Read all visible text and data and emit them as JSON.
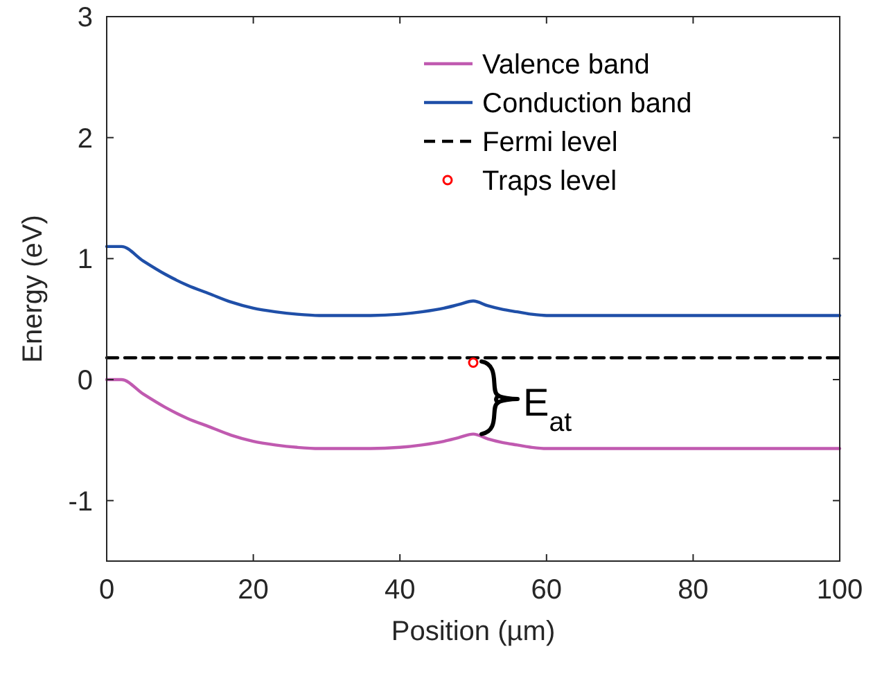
{
  "chart_data": {
    "type": "line",
    "xlabel": "Position (µm)",
    "ylabel": "Energy (eV)",
    "xlim": [
      0,
      100
    ],
    "ylim": [
      -1.5,
      3
    ],
    "xticks": [
      0,
      20,
      40,
      60,
      80,
      100
    ],
    "yticks": [
      -1,
      0,
      1,
      2,
      3
    ],
    "legend": "top right",
    "grid": false,
    "x": [
      0,
      2,
      5,
      8,
      11,
      14,
      17,
      20,
      23,
      26,
      29,
      33,
      36,
      40,
      43,
      46,
      48,
      50,
      52,
      54,
      56,
      58,
      60,
      62,
      70,
      80,
      90,
      100
    ],
    "series": [
      {
        "name": "Valence band",
        "color": "#c05ab0",
        "line_style": "solid",
        "marker": "none",
        "values": [
          0,
          0,
          -0.12,
          -0.23,
          -0.32,
          -0.39,
          -0.46,
          -0.51,
          -0.54,
          -0.56,
          -0.57,
          -0.57,
          -0.57,
          -0.56,
          -0.54,
          -0.51,
          -0.48,
          -0.45,
          -0.49,
          -0.52,
          -0.54,
          -0.56,
          -0.57,
          -0.57,
          -0.57,
          -0.57,
          -0.57,
          -0.57
        ]
      },
      {
        "name": "Conduction band",
        "color": "#1f4fa8",
        "line_style": "solid",
        "marker": "none",
        "values": [
          1.1,
          1.1,
          0.98,
          0.87,
          0.78,
          0.71,
          0.64,
          0.59,
          0.56,
          0.54,
          0.53,
          0.53,
          0.53,
          0.54,
          0.56,
          0.59,
          0.62,
          0.65,
          0.61,
          0.58,
          0.56,
          0.54,
          0.53,
          0.53,
          0.53,
          0.53,
          0.53,
          0.53
        ]
      },
      {
        "name": "Fermi level",
        "color": "#000000",
        "line_style": "dashed",
        "marker": "none",
        "x": [
          0,
          100
        ],
        "values": [
          0.18,
          0.18
        ]
      },
      {
        "name": "Traps level",
        "type": "scatter",
        "color": "#ff0000",
        "marker": "circle",
        "x": [
          50
        ],
        "values": [
          0.14
        ]
      }
    ],
    "annotations": [
      "E$_{at}$"
    ]
  }
}
